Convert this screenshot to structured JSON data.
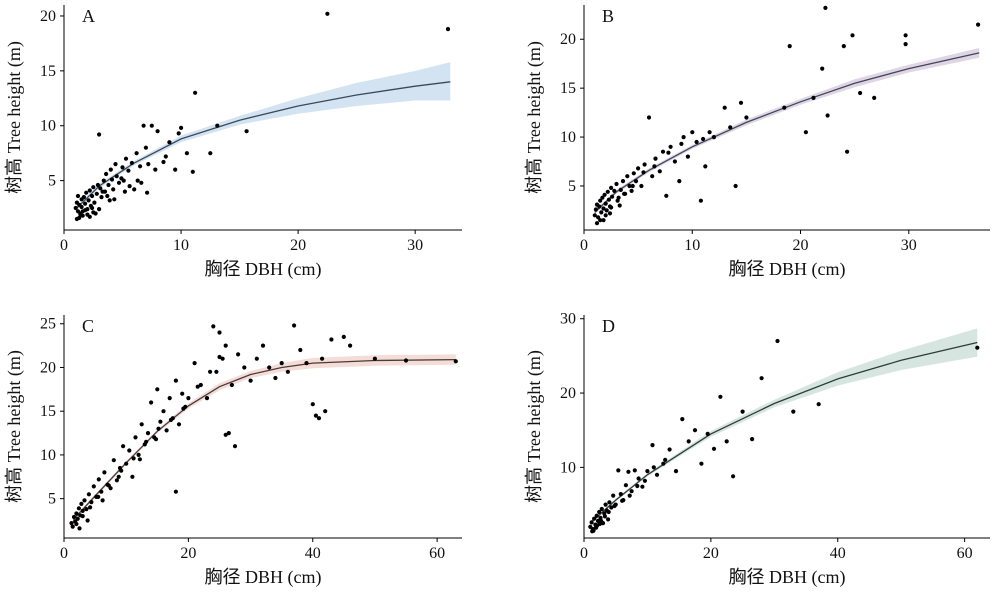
{
  "chart_data": [
    {
      "panel": "A",
      "type": "scatter",
      "xlabel": "胸径 DBH (cm)",
      "ylabel": "树高 Tree height (m)",
      "xlim": [
        0,
        34
      ],
      "ylim": [
        0.5,
        21
      ],
      "xticks": [
        0,
        10,
        20,
        30
      ],
      "yticks": [
        5,
        10,
        15,
        20
      ],
      "band_color": "#c5d9ec",
      "curve_color": "#3a4a5a",
      "fit": {
        "x": [
          1.0,
          3,
          6,
          10,
          15,
          20,
          25,
          30,
          33
        ],
        "y": [
          2.4,
          4.5,
          6.6,
          8.8,
          10.5,
          11.8,
          12.8,
          13.6,
          14.0
        ]
      },
      "band": {
        "lower": [
          2.2,
          4.3,
          6.4,
          8.5,
          10.1,
          11.1,
          11.8,
          12.3,
          12.3
        ],
        "upper": [
          2.6,
          4.7,
          6.8,
          9.1,
          10.9,
          12.5,
          13.9,
          15.0,
          15.8
        ]
      },
      "points": {
        "x": [
          1.0,
          1.1,
          1.2,
          1.2,
          1.3,
          1.4,
          1.5,
          1.5,
          1.6,
          1.7,
          1.8,
          1.9,
          2.0,
          2.1,
          2.2,
          2.3,
          2.4,
          2.5,
          2.6,
          2.8,
          3.0,
          3.1,
          3.2,
          3.4,
          3.5,
          3.6,
          3.8,
          4.0,
          4.1,
          4.2,
          4.4,
          4.5,
          4.7,
          5.0,
          5.1,
          5.3,
          5.5,
          5.8,
          6.0,
          6.2,
          6.5,
          6.8,
          7.0,
          7.2,
          7.5,
          8.0,
          8.5,
          9.0,
          9.5,
          10.0,
          10.5,
          11.0,
          11.2,
          12.5,
          13.1,
          15.6,
          22.5,
          32.8,
          1.3,
          1.6,
          2.0,
          2.4,
          2.9,
          3.3,
          3.7,
          4.3,
          4.9,
          5.6,
          6.3,
          7.1,
          7.8,
          8.7,
          9.8,
          2.5,
          3.0,
          1.1,
          1.4,
          1.8,
          2.2,
          2.7,
          3.9,
          5.2,
          6.6
        ],
        "y": [
          2.5,
          3.0,
          2.2,
          3.6,
          2.8,
          2.0,
          3.3,
          2.6,
          1.8,
          3.5,
          2.9,
          3.9,
          2.4,
          3.2,
          4.1,
          2.7,
          3.6,
          4.4,
          3.0,
          3.8,
          9.2,
          4.3,
          3.5,
          5.0,
          4.0,
          5.6,
          4.6,
          6.0,
          5.1,
          4.2,
          6.5,
          5.4,
          4.8,
          6.2,
          5.0,
          7.0,
          5.9,
          6.6,
          4.2,
          7.5,
          6.3,
          10.0,
          8.0,
          6.5,
          10.0,
          9.5,
          6.7,
          8.5,
          6.0,
          9.8,
          7.5,
          5.8,
          13.0,
          7.5,
          10.0,
          9.5,
          20.2,
          18.8,
          1.6,
          2.2,
          1.9,
          2.5,
          4.6,
          4.0,
          3.6,
          3.3,
          5.2,
          4.5,
          5.0,
          3.9,
          6.0,
          7.2,
          9.3,
          2.1,
          2.4,
          1.5,
          1.9,
          2.3,
          1.7,
          2.0,
          3.2,
          4.0,
          4.8
        ]
      }
    },
    {
      "panel": "B",
      "type": "scatter",
      "xlabel": "胸径 DBH (cm)",
      "ylabel": "树高 Tree height (m)",
      "xlim": [
        0,
        37.5
      ],
      "ylim": [
        0.5,
        23.5
      ],
      "xticks": [
        0,
        10,
        20,
        30
      ],
      "yticks": [
        5,
        10,
        15,
        20
      ],
      "band_color": "#d6c6dc",
      "curve_color": "#3a4a5a",
      "fit": {
        "x": [
          1.0,
          3,
          6,
          10,
          15,
          20,
          25,
          30,
          36.5
        ],
        "y": [
          2.3,
          4.4,
          6.6,
          9.0,
          11.5,
          13.6,
          15.5,
          17.0,
          18.6
        ]
      },
      "band": {
        "lower": [
          2.1,
          4.2,
          6.4,
          8.8,
          11.2,
          13.3,
          15.1,
          16.6,
          18.1
        ],
        "upper": [
          2.5,
          4.6,
          6.8,
          9.2,
          11.8,
          13.9,
          15.9,
          17.4,
          19.1
        ]
      },
      "points": {
        "x": [
          1.0,
          1.1,
          1.2,
          1.3,
          1.4,
          1.5,
          1.6,
          1.7,
          1.8,
          1.9,
          2.0,
          2.1,
          2.2,
          2.3,
          2.4,
          2.5,
          2.6,
          2.8,
          3.0,
          3.2,
          3.4,
          3.6,
          3.8,
          4.0,
          4.2,
          4.4,
          4.6,
          4.8,
          5.0,
          5.3,
          5.6,
          6.0,
          6.3,
          6.6,
          7.0,
          7.3,
          7.6,
          8.0,
          8.4,
          8.8,
          9.2,
          9.6,
          10.0,
          10.4,
          10.8,
          11.2,
          11.6,
          12.0,
          13.0,
          14.0,
          14.5,
          15.0,
          18.5,
          19.0,
          20.5,
          21.2,
          22.0,
          22.3,
          22.5,
          24.0,
          24.3,
          24.8,
          25.5,
          26.8,
          29.7,
          29.7,
          36.4,
          1.5,
          2.0,
          2.5,
          3.1,
          3.7,
          4.5,
          5.5,
          6.5,
          7.8,
          9.0,
          11.0,
          13.5,
          1.2,
          1.8,
          2.4,
          3.3
        ],
        "y": [
          2.0,
          2.6,
          3.1,
          1.8,
          2.9,
          3.5,
          2.3,
          3.8,
          2.7,
          4.1,
          3.2,
          2.5,
          4.4,
          3.6,
          2.9,
          4.8,
          3.9,
          4.5,
          5.2,
          3.8,
          4.6,
          5.5,
          4.2,
          6.0,
          5.0,
          4.5,
          6.3,
          5.5,
          6.8,
          5.0,
          7.2,
          12.0,
          6.0,
          7.8,
          6.5,
          8.5,
          4.0,
          9.0,
          7.5,
          5.5,
          10.0,
          8.0,
          10.5,
          9.5,
          3.5,
          7.0,
          10.5,
          10.0,
          13.0,
          5.0,
          13.5,
          12.0,
          13.0,
          19.3,
          10.5,
          14.0,
          17.0,
          23.2,
          12.2,
          19.3,
          8.5,
          20.4,
          14.5,
          14.0,
          19.5,
          20.4,
          21.5,
          1.5,
          2.0,
          2.8,
          3.5,
          4.2,
          5.0,
          6.4,
          7.0,
          8.4,
          9.3,
          9.8,
          11.0,
          1.2,
          1.5,
          2.2,
          3.0
        ]
      }
    },
    {
      "panel": "C",
      "type": "scatter",
      "xlabel": "胸径 DBH (cm)",
      "ylabel": "树高 Tree height (m)",
      "xlim": [
        0,
        64
      ],
      "ylim": [
        0.5,
        26
      ],
      "xticks": [
        0,
        20,
        40,
        60
      ],
      "yticks": [
        5,
        10,
        15,
        20,
        25
      ],
      "band_color": "#f0d2c8",
      "curve_color": "#4a3a3a",
      "fit": {
        "x": [
          1.5,
          5,
          10,
          15,
          20,
          25,
          30,
          35,
          40,
          50,
          63
        ],
        "y": [
          2.6,
          5.3,
          9.1,
          12.7,
          15.6,
          17.8,
          19.2,
          20.0,
          20.5,
          20.8,
          20.9
        ]
      },
      "band": {
        "lower": [
          2.4,
          5.1,
          8.9,
          12.5,
          15.3,
          17.4,
          18.8,
          19.5,
          19.9,
          20.2,
          20.3
        ],
        "upper": [
          2.8,
          5.5,
          9.3,
          12.9,
          15.9,
          18.2,
          19.6,
          20.5,
          21.1,
          21.4,
          21.5
        ]
      },
      "points": {
        "x": [
          1.2,
          1.4,
          1.6,
          1.8,
          2.0,
          2.2,
          2.4,
          2.6,
          2.8,
          3.0,
          3.3,
          3.6,
          4.0,
          4.4,
          4.8,
          5.2,
          5.6,
          6.0,
          6.5,
          7.0,
          7.5,
          8.0,
          8.5,
          9.0,
          9.5,
          10.0,
          10.5,
          11.0,
          11.5,
          12.0,
          12.5,
          13.0,
          13.5,
          14.0,
          14.5,
          15.0,
          15.5,
          16.0,
          16.5,
          17.0,
          17.5,
          18.0,
          18.5,
          19.0,
          19.5,
          20.0,
          21.0,
          22.0,
          23.0,
          24.0,
          24.5,
          25.0,
          25.5,
          26.0,
          26.5,
          27.0,
          28.0,
          29.0,
          30.0,
          31.0,
          32.0,
          33.0,
          34.0,
          35.0,
          36.0,
          37.0,
          38.0,
          39.0,
          40.0,
          41.0,
          42.0,
          43.0,
          45.0,
          46.0,
          50.0,
          55.0,
          63.0,
          18.0,
          26.0,
          27.5,
          40.5,
          41.5,
          2.0,
          3.0,
          4.2,
          5.5,
          7.2,
          9.2,
          11.2,
          13.2,
          15.2,
          17.2,
          19.2,
          21.5,
          23.5,
          25.0,
          2.5,
          3.8,
          6.2,
          8.8,
          12.2,
          14.8
        ],
        "y": [
          2.2,
          1.8,
          2.9,
          2.4,
          3.3,
          2.7,
          3.9,
          3.1,
          4.4,
          3.6,
          4.8,
          3.8,
          5.5,
          4.6,
          6.4,
          5.2,
          7.2,
          5.8,
          8.0,
          6.6,
          6.2,
          9.4,
          7.1,
          8.5,
          11.0,
          9.0,
          10.5,
          7.5,
          12.0,
          10.0,
          13.5,
          11.2,
          12.5,
          16.0,
          12.0,
          17.5,
          13.8,
          15.0,
          12.8,
          16.5,
          14.2,
          18.5,
          13.5,
          17.0,
          15.5,
          16.5,
          20.5,
          18.0,
          16.5,
          24.7,
          19.5,
          24.0,
          21.0,
          22.5,
          12.5,
          18.0,
          21.5,
          20.0,
          18.5,
          21.0,
          22.5,
          20.0,
          18.8,
          20.5,
          19.5,
          24.8,
          22.0,
          20.5,
          15.8,
          14.2,
          15.0,
          23.2,
          23.5,
          22.5,
          21.0,
          20.8,
          20.7,
          5.8,
          12.3,
          11.0,
          14.5,
          21.0,
          2.1,
          3.0,
          4.0,
          5.2,
          6.5,
          8.2,
          9.6,
          11.5,
          13.0,
          14.0,
          15.3,
          17.8,
          19.5,
          21.2,
          1.6,
          2.5,
          4.8,
          7.5,
          9.5,
          11.8
        ]
      }
    },
    {
      "panel": "D",
      "type": "scatter",
      "xlabel": "胸径 DBH (cm)",
      "ylabel": "树高 Tree height (m)",
      "xlim": [
        0,
        64
      ],
      "ylim": [
        0.5,
        30.5
      ],
      "xticks": [
        0,
        20,
        40,
        60
      ],
      "yticks": [
        10,
        20,
        30
      ],
      "band_color": "#c8dcd4",
      "curve_color": "#2f3d3a",
      "fit": {
        "x": [
          1.0,
          5,
          10,
          20,
          30,
          40,
          50,
          62
        ],
        "y": [
          2.5,
          5.6,
          9.0,
          14.5,
          18.6,
          21.9,
          24.4,
          26.8
        ]
      },
      "band": {
        "lower": [
          2.3,
          5.4,
          8.8,
          14.1,
          18.1,
          21.0,
          23.1,
          24.9
        ],
        "upper": [
          2.7,
          5.8,
          9.2,
          14.9,
          19.1,
          22.8,
          25.7,
          28.7
        ]
      },
      "points": {
        "x": [
          1.0,
          1.2,
          1.4,
          1.6,
          1.8,
          2.0,
          2.2,
          2.4,
          2.6,
          2.8,
          3.0,
          3.2,
          3.4,
          3.6,
          3.8,
          4.0,
          4.3,
          4.6,
          5.0,
          5.4,
          5.8,
          6.2,
          6.6,
          7.0,
          7.5,
          8.0,
          8.6,
          9.2,
          10.0,
          10.8,
          11.5,
          12.5,
          13.5,
          14.5,
          15.5,
          16.5,
          17.5,
          18.5,
          19.5,
          20.5,
          21.5,
          22.5,
          23.5,
          25.0,
          26.5,
          28.0,
          30.5,
          33.0,
          37.0,
          62.0,
          1.5,
          2.1,
          2.7,
          3.3,
          3.9,
          4.8,
          6.0,
          7.2,
          8.4,
          9.6,
          11.0,
          12.8,
          1.3,
          1.9,
          2.5
        ],
        "y": [
          2.0,
          2.6,
          1.7,
          3.1,
          2.3,
          3.5,
          2.8,
          4.0,
          3.2,
          4.4,
          2.5,
          3.8,
          5.0,
          4.2,
          3.0,
          5.3,
          4.6,
          6.2,
          5.0,
          9.6,
          6.4,
          5.6,
          7.6,
          9.4,
          6.8,
          9.6,
          8.5,
          7.4,
          9.5,
          13.0,
          9.0,
          10.5,
          12.4,
          9.5,
          16.5,
          13.5,
          15.0,
          10.5,
          14.5,
          12.5,
          19.5,
          13.5,
          8.8,
          17.5,
          13.8,
          22.0,
          27.0,
          17.5,
          18.5,
          26.1,
          1.5,
          2.2,
          2.8,
          3.4,
          4.0,
          4.8,
          5.5,
          6.2,
          7.5,
          8.2,
          10.0,
          11.0,
          1.4,
          1.9,
          2.4
        ]
      }
    }
  ]
}
